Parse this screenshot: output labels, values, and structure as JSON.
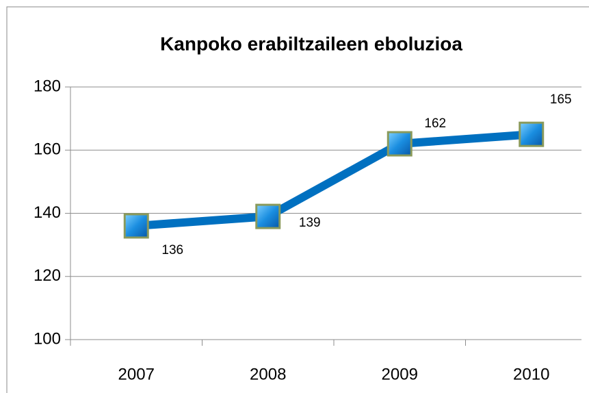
{
  "chart_data": {
    "type": "line",
    "title": "Kanpoko erabiltzaileen eboluzioa",
    "categories": [
      "2007",
      "2008",
      "2009",
      "2010"
    ],
    "values": [
      136,
      139,
      162,
      165
    ],
    "color": "#0070c0",
    "ylim": [
      100,
      180
    ],
    "yticks": [
      100,
      120,
      140,
      160,
      180
    ],
    "grid": true
  }
}
